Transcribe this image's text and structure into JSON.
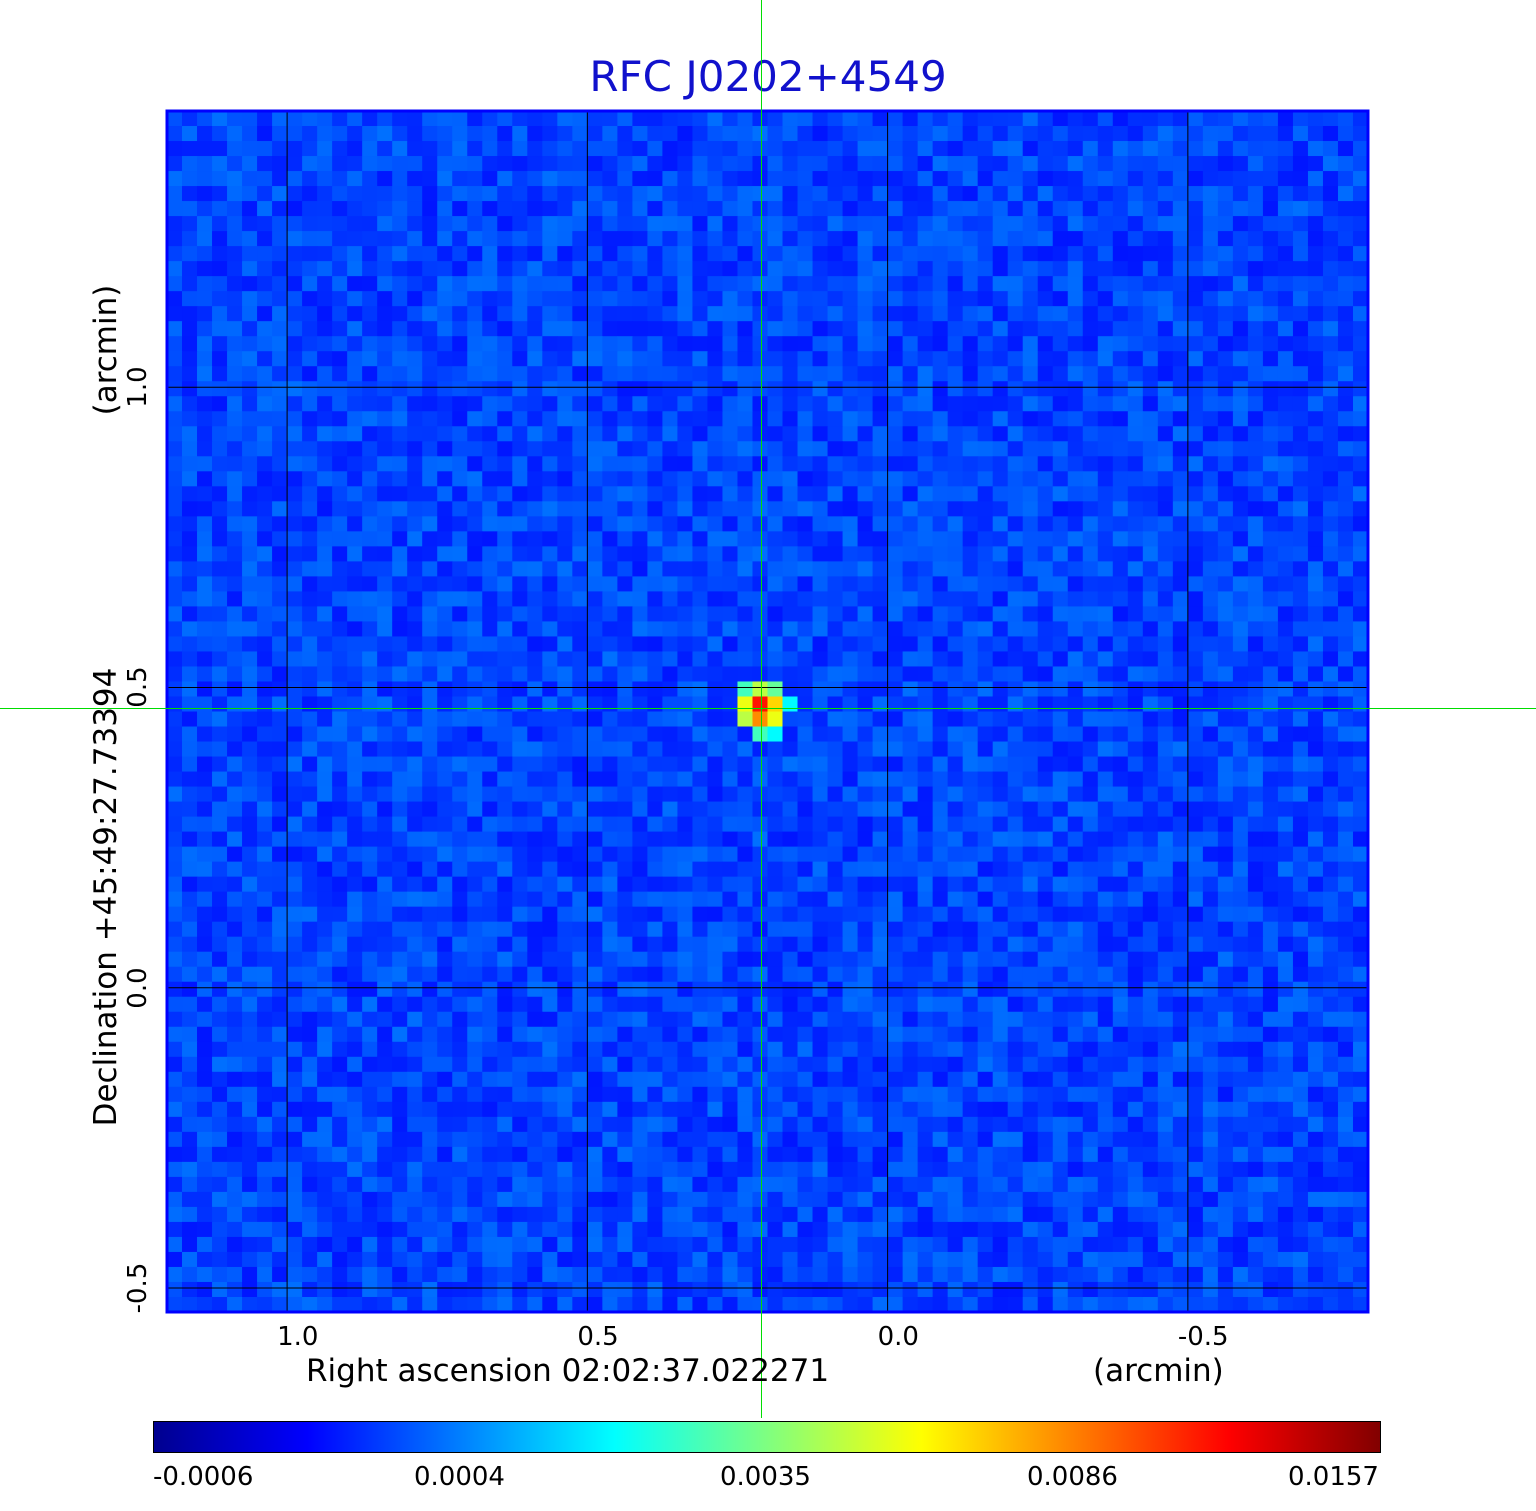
{
  "chart_data": {
    "type": "heatmap",
    "title": "RFC J0202+4549",
    "xlabel": "Right ascension  02:02:37.022271",
    "xunit": "(arcmin)",
    "ylabel": "Declination  +45:49:27.73394",
    "yunit": "(arcmin)",
    "xlim": [
      1.2,
      -0.8
    ],
    "ylim": [
      -0.54,
      1.46
    ],
    "x_ticks": [
      "1.0",
      "0.5",
      "0.0",
      "-0.5"
    ],
    "x_tick_values": [
      1.0,
      0.5,
      0.0,
      -0.5
    ],
    "y_ticks": [
      "-0.5",
      "0.0",
      "0.5",
      "1.0"
    ],
    "y_tick_values": [
      -0.5,
      0.0,
      0.5,
      1.0
    ],
    "grid": true,
    "crosshair": {
      "x": 0.21,
      "y": 0.465
    },
    "peak": {
      "x": 0.21,
      "y": 0.465,
      "value": 0.0157
    },
    "colorbar": {
      "colormap": "jet",
      "tick_labels": [
        "-0.0006",
        "0.0004",
        "0.0035",
        "0.0086",
        "0.0157"
      ],
      "tick_values": [
        -0.0006,
        0.0004,
        0.0035,
        0.0086,
        0.0157
      ]
    },
    "colors": {
      "title": "#1111cc",
      "frame": "#0000ff",
      "grid": "#000000",
      "crosshair": "#00dd00"
    }
  }
}
